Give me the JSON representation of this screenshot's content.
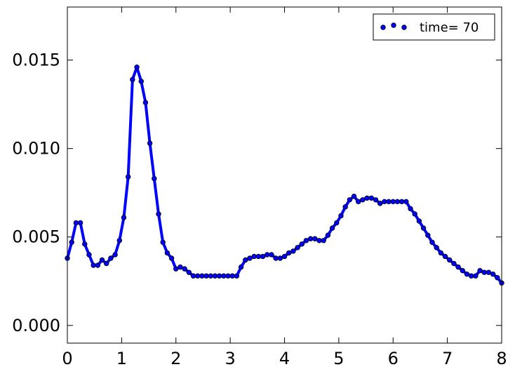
{
  "chart_data": {
    "type": "line",
    "xlim": [
      0,
      8
    ],
    "ylim": [
      -0.001,
      0.018
    ],
    "x_ticks": [
      0,
      1,
      2,
      3,
      4,
      5,
      6,
      7,
      8
    ],
    "x_tick_labels": [
      "0",
      "1",
      "2",
      "3",
      "4",
      "5",
      "6",
      "7",
      "8"
    ],
    "y_ticks": [
      0.0,
      0.005,
      0.01,
      0.015
    ],
    "y_tick_labels": [
      "0.000",
      "0.005",
      "0.010",
      "0.015"
    ],
    "grid": false,
    "legend": {
      "position": "top-right"
    },
    "series": [
      {
        "name": "time= 70",
        "color": "#0000ff",
        "marker": "circle",
        "x": [
          0.0,
          0.08,
          0.16,
          0.24,
          0.32,
          0.4,
          0.48,
          0.56,
          0.64,
          0.72,
          0.8,
          0.88,
          0.96,
          1.04,
          1.12,
          1.2,
          1.28,
          1.36,
          1.44,
          1.52,
          1.6,
          1.68,
          1.76,
          1.84,
          1.92,
          2.0,
          2.08,
          2.16,
          2.24,
          2.32,
          2.4,
          2.48,
          2.56,
          2.64,
          2.72,
          2.8,
          2.88,
          2.96,
          3.04,
          3.12,
          3.2,
          3.28,
          3.36,
          3.44,
          3.52,
          3.6,
          3.68,
          3.76,
          3.84,
          3.92,
          4.0,
          4.08,
          4.16,
          4.24,
          4.32,
          4.4,
          4.48,
          4.56,
          4.64,
          4.72,
          4.8,
          4.88,
          4.96,
          5.04,
          5.12,
          5.2,
          5.28,
          5.36,
          5.44,
          5.52,
          5.6,
          5.68,
          5.76,
          5.84,
          5.92,
          6.0,
          6.08,
          6.16,
          6.24,
          6.32,
          6.4,
          6.48,
          6.56,
          6.64,
          6.72,
          6.8,
          6.88,
          6.96,
          7.04,
          7.12,
          7.2,
          7.28,
          7.36,
          7.44,
          7.52,
          7.6,
          7.68,
          7.76,
          7.84,
          7.92,
          8.0
        ],
        "y": [
          0.0038,
          0.0047,
          0.0058,
          0.0058,
          0.0046,
          0.004,
          0.0034,
          0.0034,
          0.0037,
          0.0035,
          0.0038,
          0.004,
          0.0048,
          0.0061,
          0.0084,
          0.0139,
          0.0146,
          0.0138,
          0.0126,
          0.0103,
          0.0083,
          0.0063,
          0.0047,
          0.0041,
          0.0038,
          0.0032,
          0.0033,
          0.0032,
          0.003,
          0.0028,
          0.0028,
          0.0028,
          0.0028,
          0.0028,
          0.0028,
          0.0028,
          0.0028,
          0.0028,
          0.0028,
          0.0028,
          0.0033,
          0.0037,
          0.0038,
          0.0039,
          0.0039,
          0.0039,
          0.004,
          0.004,
          0.0038,
          0.0038,
          0.0039,
          0.0041,
          0.0042,
          0.0044,
          0.0046,
          0.0048,
          0.0049,
          0.0049,
          0.0048,
          0.0048,
          0.0051,
          0.0055,
          0.0058,
          0.0062,
          0.0067,
          0.0071,
          0.0073,
          0.007,
          0.0071,
          0.0072,
          0.0072,
          0.0071,
          0.0069,
          0.007,
          0.007,
          0.007,
          0.007,
          0.007,
          0.007,
          0.0066,
          0.0063,
          0.0059,
          0.0055,
          0.0051,
          0.0047,
          0.0044,
          0.0041,
          0.0039,
          0.0037,
          0.0035,
          0.0033,
          0.0031,
          0.0029,
          0.0028,
          0.0028,
          0.0031,
          0.003,
          0.003,
          0.0029,
          0.0027,
          0.0024
        ]
      }
    ]
  }
}
